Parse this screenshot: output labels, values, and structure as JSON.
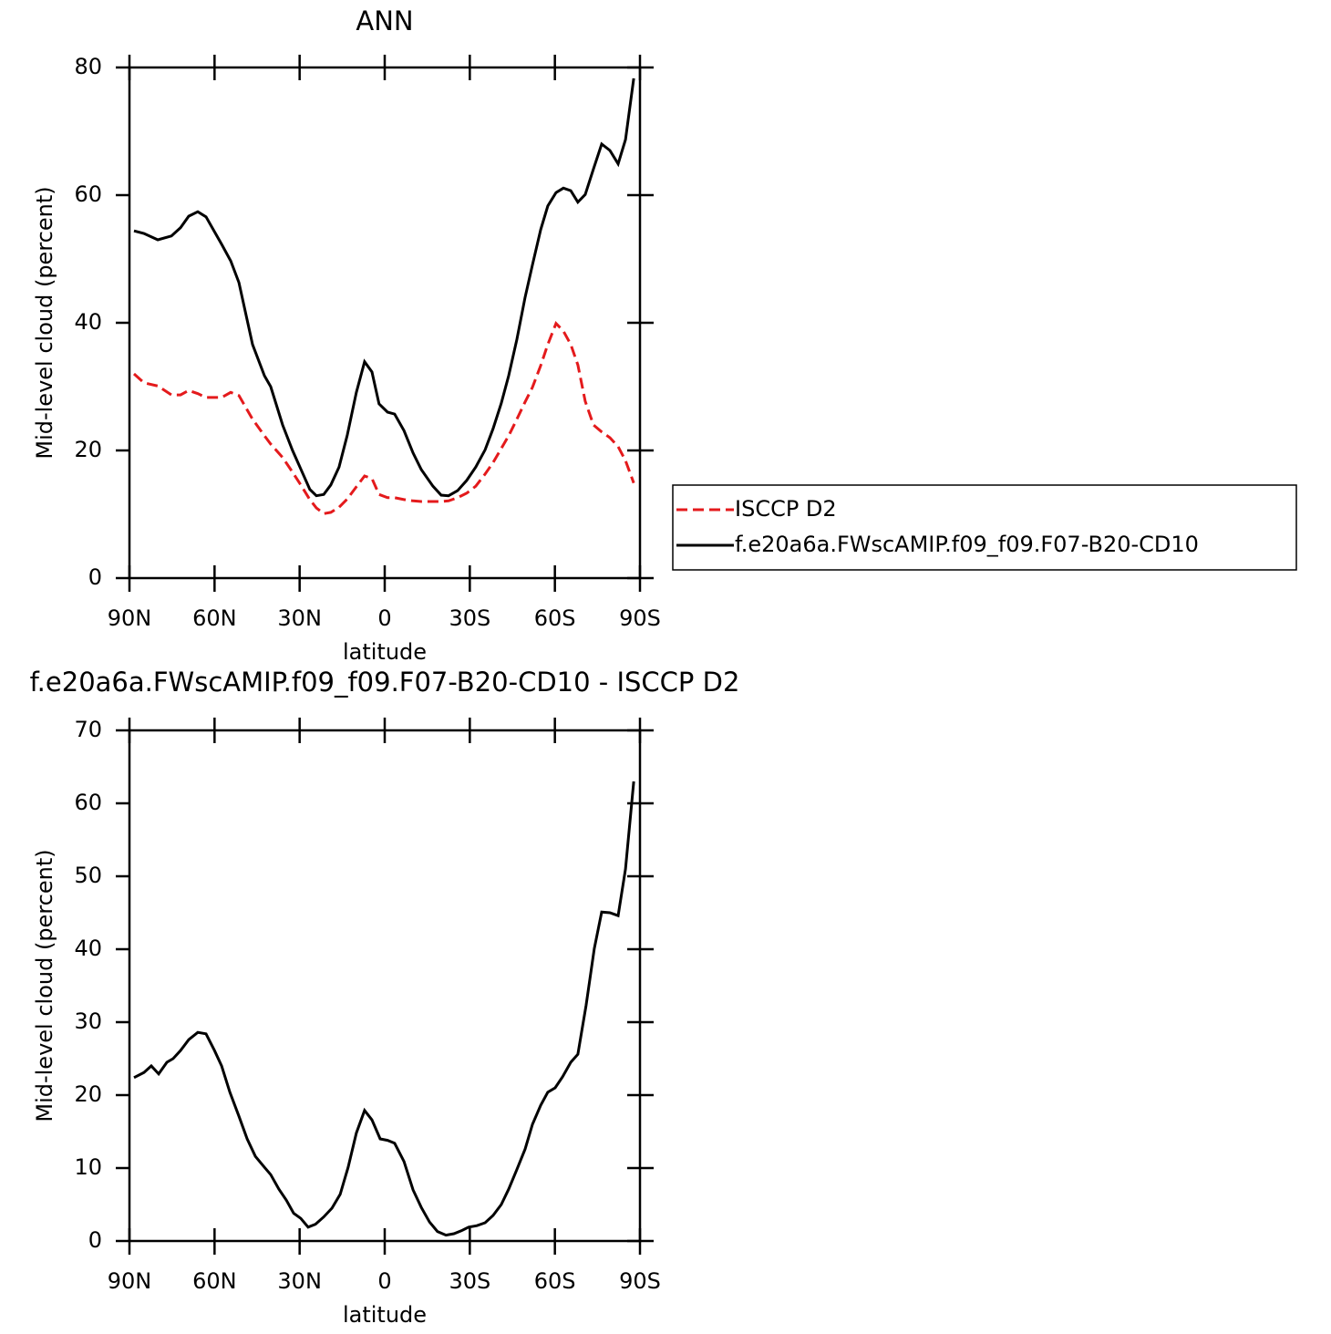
{
  "chart_data": [
    {
      "type": "line",
      "title": "ANN",
      "x_label": "latitude",
      "y_label": "Mid-level cloud (percent)",
      "x": [
        88.4,
        84.9,
        80.0,
        75.2,
        72.0,
        69.1,
        65.9,
        63.0,
        57.5,
        54.3,
        51.4,
        46.6,
        42.4,
        40.2,
        36.0,
        32.5,
        29.6,
        26.4,
        24.1,
        21.5,
        19.0,
        16.1,
        13.2,
        10.0,
        7.1,
        4.5,
        2.0,
        -1.0,
        -3.5,
        -6.8,
        -10.0,
        -12.9,
        -17.0,
        -19.9,
        -22.5,
        -25.7,
        -28.9,
        -32.1,
        -35.4,
        -38.2,
        -41.1,
        -43.7,
        -46.6,
        -49.5,
        -52.1,
        -55.0,
        -57.5,
        -60.4,
        -63.0,
        -65.6,
        -68.1,
        -70.7,
        -73.6,
        -76.5,
        -79.4,
        -82.3,
        -84.9,
        -87.8
      ],
      "series": [
        {
          "name": "ISCCP D2",
          "color": "#e41a1c",
          "dashed": true,
          "values": [
            32.0,
            30.6,
            30.1,
            28.7,
            28.7,
            29.4,
            28.9,
            28.3,
            28.3,
            29.1,
            28.6,
            24.9,
            22.3,
            21.0,
            18.9,
            16.6,
            14.6,
            12.3,
            11.0,
            10.1,
            10.3,
            11.1,
            12.4,
            14.3,
            16.0,
            15.6,
            13.1,
            12.6,
            12.6,
            12.3,
            12.1,
            12.0,
            12.0,
            12.0,
            12.1,
            12.6,
            13.3,
            14.4,
            16.3,
            18.1,
            20.3,
            22.3,
            24.9,
            27.6,
            29.9,
            33.3,
            36.6,
            39.9,
            38.7,
            36.6,
            33.4,
            27.7,
            24.0,
            22.9,
            22.0,
            20.6,
            18.4,
            14.9
          ]
        },
        {
          "name": "f.e20a6a.FWscAMIP.f09_f09.F07-B20-CD10",
          "color": "#000000",
          "dashed": false,
          "values": [
            54.4,
            54.0,
            53.0,
            53.6,
            54.9,
            56.7,
            57.4,
            56.6,
            52.3,
            49.7,
            46.3,
            36.6,
            31.7,
            30.0,
            24.0,
            20.0,
            17.1,
            13.9,
            12.9,
            13.1,
            14.6,
            17.4,
            22.4,
            29.1,
            33.9,
            32.3,
            27.3,
            26.0,
            25.7,
            23.1,
            19.6,
            17.0,
            14.4,
            13.0,
            12.9,
            13.7,
            15.3,
            17.4,
            20.1,
            23.4,
            27.4,
            31.7,
            37.4,
            44.0,
            49.1,
            54.6,
            58.3,
            60.4,
            61.1,
            60.7,
            58.9,
            60.1,
            64.1,
            68.0,
            67.0,
            64.9,
            68.7,
            78.3
          ]
        }
      ],
      "xlim": [
        90,
        -90
      ],
      "xticks": [
        {
          "value": 90,
          "label": "90N"
        },
        {
          "value": 60,
          "label": "60N"
        },
        {
          "value": 30,
          "label": "30N"
        },
        0,
        {
          "value": -30,
          "label": "30S"
        },
        {
          "value": -60,
          "label": "60S"
        },
        {
          "value": -90,
          "label": "90S"
        }
      ],
      "ylim": [
        0,
        80
      ],
      "yticks": [
        0,
        20,
        40,
        60,
        80
      ],
      "legend": "right"
    },
    {
      "type": "line",
      "title": "f.e20a6a.FWscAMIP.f09_f09.F07-B20-CD10 - ISCCP D2",
      "x_label": "latitude",
      "y_label": "Mid-level cloud (percent)",
      "x": [
        88.4,
        84.9,
        82.3,
        79.7,
        76.8,
        74.6,
        72.0,
        69.1,
        65.9,
        63.0,
        60.0,
        57.5,
        54.6,
        51.4,
        48.5,
        45.6,
        42.4,
        40.2,
        37.3,
        34.7,
        32.1,
        29.6,
        27.0,
        24.4,
        21.5,
        18.6,
        15.7,
        12.9,
        10.0,
        7.1,
        4.5,
        1.6,
        -1.0,
        -3.5,
        -6.8,
        -10.0,
        -12.9,
        -15.8,
        -18.6,
        -21.6,
        -24.4,
        -27.0,
        -29.6,
        -32.5,
        -35.4,
        -38.2,
        -41.1,
        -43.7,
        -46.6,
        -49.5,
        -52.1,
        -55.0,
        -57.5,
        -60.1,
        -62.7,
        -65.6,
        -68.1,
        -71.0,
        -73.9,
        -76.5,
        -79.4,
        -82.3,
        -84.9,
        -87.8
      ],
      "series": [
        {
          "color": "#000000",
          "dashed": false,
          "values": [
            22.4,
            23.1,
            24.0,
            22.9,
            24.5,
            25.0,
            26.1,
            27.6,
            28.6,
            28.4,
            26.1,
            24.0,
            20.4,
            17.1,
            14.0,
            11.6,
            10.1,
            9.1,
            7.1,
            5.6,
            3.8,
            3.1,
            1.9,
            2.3,
            3.3,
            4.5,
            6.4,
            10.1,
            14.8,
            17.9,
            16.6,
            14.0,
            13.8,
            13.4,
            10.9,
            7.0,
            4.6,
            2.6,
            1.3,
            0.8,
            1.0,
            1.4,
            1.9,
            2.1,
            2.5,
            3.5,
            5.0,
            7.1,
            9.8,
            12.6,
            16.0,
            18.6,
            20.4,
            21.0,
            22.5,
            24.5,
            25.6,
            32.3,
            40.1,
            45.1,
            45.0,
            44.6,
            51.0,
            63.0
          ]
        }
      ],
      "xlim": [
        90,
        -90
      ],
      "xticks": [
        {
          "value": 90,
          "label": "90N"
        },
        {
          "value": 60,
          "label": "60N"
        },
        {
          "value": 30,
          "label": "30N"
        },
        0,
        {
          "value": -30,
          "label": "30S"
        },
        {
          "value": -60,
          "label": "60S"
        },
        {
          "value": -90,
          "label": "90S"
        }
      ],
      "ylim": [
        0,
        70
      ],
      "yticks": [
        0,
        10,
        20,
        30,
        40,
        50,
        60,
        70
      ]
    }
  ]
}
